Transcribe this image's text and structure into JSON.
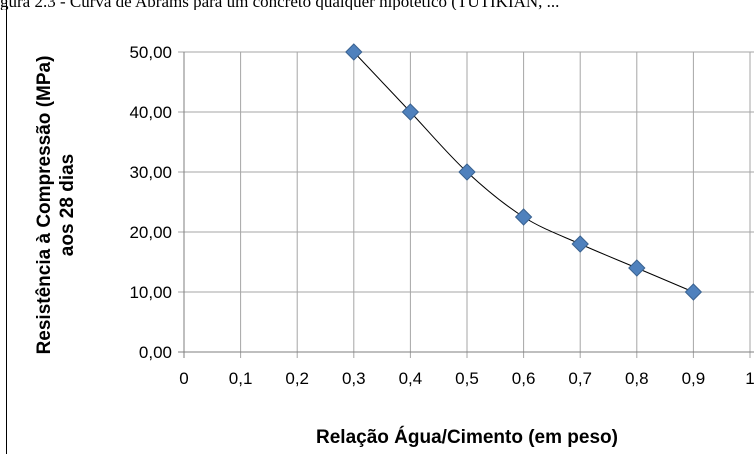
{
  "caption": "gura 2.3 - Curva de Abrams para um concreto qualquer hipotético (TUTIKIAN, ...",
  "colors": {
    "marker": "#4f81bd",
    "marker_edge": "#3a6290",
    "grid": "#a6a6a6",
    "curve": "#000000"
  },
  "chart_data": {
    "type": "scatter",
    "xlabel": "Relação Água/Cimento (em peso)",
    "ylabel_lines": [
      "Resistência à Compressão  (MPa)",
      "aos 28 dias"
    ],
    "xlim": [
      0,
      1
    ],
    "ylim": [
      0,
      50
    ],
    "x_ticks": [
      "0",
      "0,1",
      "0,2",
      "0,3",
      "0,4",
      "0,5",
      "0,6",
      "0,7",
      "0,8",
      "0,9",
      "1"
    ],
    "y_ticks": [
      "0,00",
      "10,00",
      "20,00",
      "30,00",
      "40,00",
      "50,00"
    ],
    "grid": true,
    "marker": "diamond",
    "trendline": true,
    "x": [
      0.3,
      0.4,
      0.5,
      0.6,
      0.7,
      0.8,
      0.9
    ],
    "y": [
      50,
      40,
      30,
      22.5,
      18,
      14,
      10
    ]
  }
}
